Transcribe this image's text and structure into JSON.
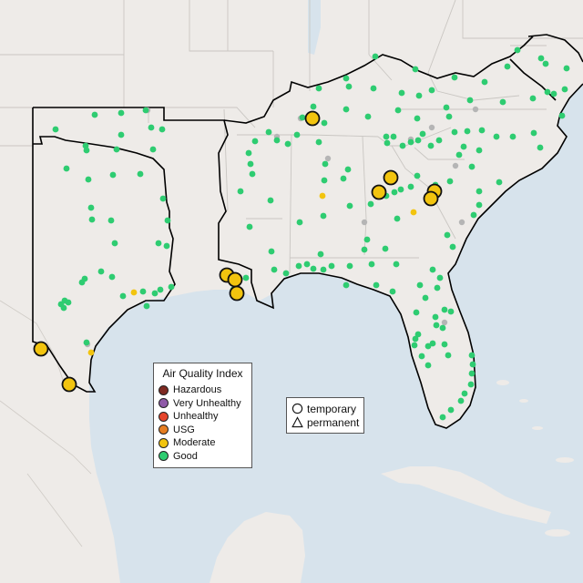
{
  "legend": {
    "title": "Air Quality Index",
    "categories": [
      {
        "label": "Hazardous",
        "color": "#7e2a22"
      },
      {
        "label": "Very Unhealthy",
        "color": "#8f5aa8"
      },
      {
        "label": "Unhealthy",
        "color": "#e5452c"
      },
      {
        "label": "USG",
        "color": "#e67e22"
      },
      {
        "label": "Moderate",
        "color": "#f2c40f"
      },
      {
        "label": "Good",
        "color": "#2ecc71"
      }
    ]
  },
  "shape_legend": {
    "items": [
      {
        "label": "temporary",
        "icon": "circle-icon"
      },
      {
        "label": "permanent",
        "icon": "triangle-icon"
      }
    ]
  },
  "colors": {
    "water": "#d7e3ec",
    "land": "#eeebe8",
    "border": "#000000",
    "good": "#2ecc71",
    "moderate": "#f2c40f",
    "inactive": "#b5b5b5"
  },
  "map_data": {
    "region": "Southeastern United States",
    "monitors": [
      {
        "category": "Moderate",
        "type": "temporary",
        "count": 14
      },
      {
        "category": "Good",
        "type": "temporary"
      }
    ]
  }
}
